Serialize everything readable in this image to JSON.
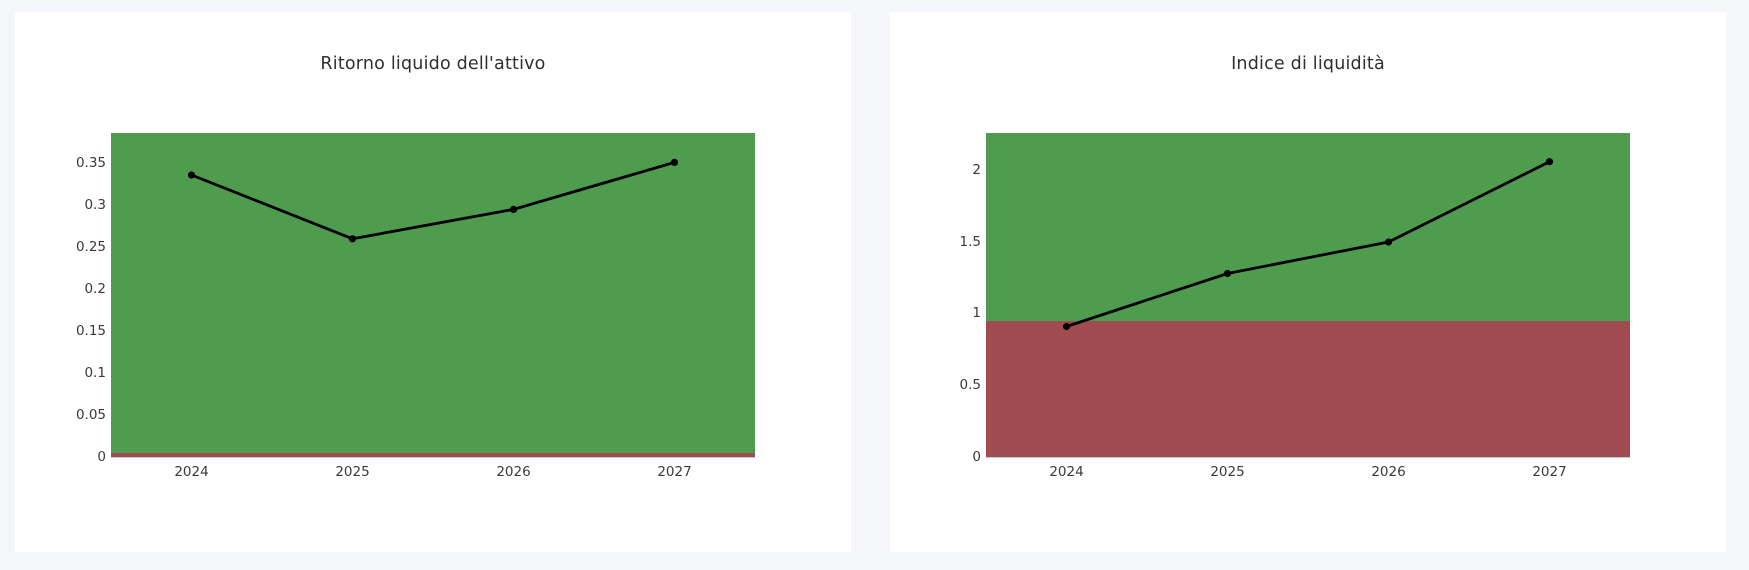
{
  "page": {
    "background_color": "#f4f6fa",
    "card_color": "#ffffff"
  },
  "chart_data": [
    {
      "type": "line",
      "title": "Ritorno liquido dell'attivo",
      "categories": [
        "2024",
        "2025",
        "2026",
        "2027"
      ],
      "values": [
        0.336,
        0.26,
        0.295,
        0.351
      ],
      "ytick_values": [
        0,
        0.05,
        0.1,
        0.15,
        0.2,
        0.25,
        0.3,
        0.35
      ],
      "ytick_labels": [
        "0",
        "0.05",
        "0.1",
        "0.15",
        "0.2",
        "0.25",
        "0.3",
        "0.35"
      ],
      "ylim": [
        0,
        0.386
      ],
      "xlabel": "",
      "ylabel": "",
      "grid": false,
      "legend": "none",
      "red_zone": {
        "from": 0,
        "to": 0.005
      },
      "green_zone": {
        "from": 0.005,
        "to": 0.386
      },
      "colors": {
        "green": "#4f9c4f",
        "red": "#a04b50",
        "line": "#000000"
      }
    },
    {
      "type": "line",
      "title": "Indice di liquidità",
      "categories": [
        "2024",
        "2025",
        "2026",
        "2027"
      ],
      "values": [
        0.91,
        1.28,
        1.5,
        2.06
      ],
      "ytick_values": [
        0,
        0.5,
        1,
        1.5,
        2
      ],
      "ytick_labels": [
        "0",
        "0.5",
        "1",
        "1.5",
        "2"
      ],
      "ylim": [
        0,
        2.26
      ],
      "xlabel": "",
      "ylabel": "",
      "grid": false,
      "legend": "none",
      "red_zone": {
        "from": 0,
        "to": 0.95
      },
      "green_zone": {
        "from": 0.95,
        "to": 2.26
      },
      "colors": {
        "green": "#4f9c4f",
        "red": "#a04b50",
        "line": "#000000"
      }
    }
  ]
}
